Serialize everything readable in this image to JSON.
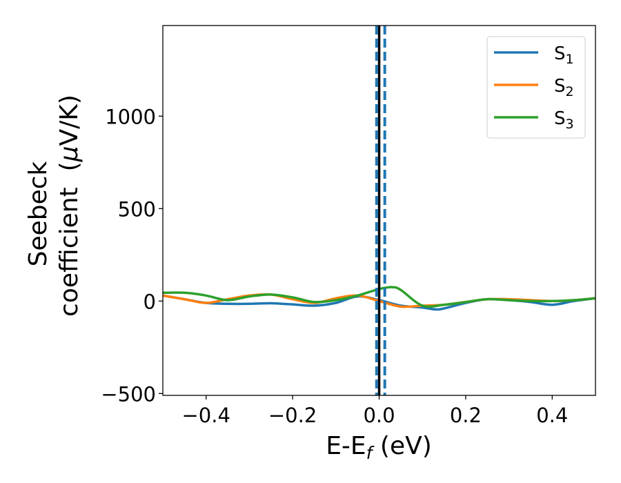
{
  "chart_data": {
    "type": "line",
    "xlabel": {
      "base": "E-E",
      "sub": "f",
      "tail": " (eV)"
    },
    "ylabel": {
      "line1": "Seebeck",
      "line2_prefix": "coefficient  (",
      "line2_mu": "μ",
      "line2_suffix": "V/K)"
    },
    "xlim": [
      -0.5,
      0.5
    ],
    "ylim": [
      -510,
      1490
    ],
    "xticks": [
      -0.4,
      -0.2,
      0.0,
      0.2,
      0.4
    ],
    "xtick_labels": [
      "−0.4",
      "−0.2",
      "0.0",
      "0.2",
      "0.4"
    ],
    "yticks": [
      -500,
      0,
      500,
      1000
    ],
    "ytick_labels": [
      "−500",
      "0",
      "500",
      "1000"
    ],
    "grid": false,
    "legend_position": "top-right",
    "series": [
      {
        "name": "S1",
        "label_base": "S",
        "label_sub": "1",
        "color": "#1f77b4",
        "x": [
          -0.5,
          -0.45,
          -0.4,
          -0.35,
          -0.3,
          -0.25,
          -0.2,
          -0.15,
          -0.1,
          -0.05,
          0.0,
          0.05,
          0.1,
          0.13,
          0.15,
          0.2,
          0.25,
          0.3,
          0.35,
          0.4,
          0.45,
          0.5
        ],
        "values": [
          30,
          10,
          -10,
          -15,
          -15,
          -12,
          -18,
          -25,
          -10,
          25,
          5,
          -25,
          -35,
          -45,
          -40,
          -10,
          10,
          5,
          -5,
          -20,
          0,
          15
        ]
      },
      {
        "name": "S2",
        "label_base": "S",
        "label_sub": "2",
        "color": "#ff7f0e",
        "x": [
          -0.5,
          -0.45,
          -0.4,
          -0.35,
          -0.3,
          -0.25,
          -0.2,
          -0.15,
          -0.1,
          -0.05,
          0.0,
          0.05,
          0.1,
          0.15,
          0.2,
          0.25,
          0.3,
          0.35,
          0.4,
          0.45,
          0.5
        ],
        "values": [
          30,
          10,
          -10,
          10,
          30,
          35,
          10,
          -10,
          15,
          30,
          0,
          -30,
          -25,
          -20,
          -5,
          10,
          10,
          5,
          0,
          5,
          15
        ]
      },
      {
        "name": "S3",
        "label_base": "S",
        "label_sub": "3",
        "color": "#2ca02c",
        "x": [
          -0.5,
          -0.45,
          -0.4,
          -0.35,
          -0.3,
          -0.25,
          -0.2,
          -0.15,
          -0.1,
          -0.05,
          0.0,
          0.03,
          0.05,
          0.1,
          0.15,
          0.2,
          0.25,
          0.3,
          0.35,
          0.4,
          0.45,
          0.5
        ],
        "values": [
          45,
          45,
          30,
          5,
          25,
          35,
          20,
          -5,
          5,
          30,
          65,
          75,
          60,
          -25,
          -20,
          -5,
          10,
          5,
          0,
          0,
          5,
          15
        ]
      }
    ],
    "vlines": [
      {
        "x": 0.0,
        "color": "#000000",
        "style": "solid"
      },
      {
        "x": -0.006,
        "color": "#1f77b4",
        "style": "dashed"
      },
      {
        "x": 0.013,
        "color": "#1f77b4",
        "style": "dashed"
      }
    ]
  }
}
